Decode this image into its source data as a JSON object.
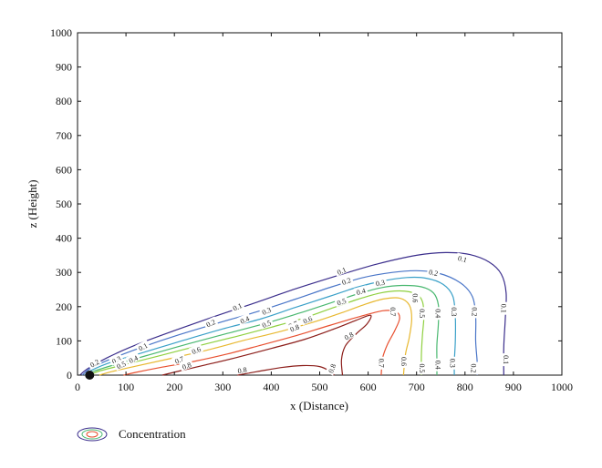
{
  "chart_data": {
    "type": "contour",
    "title": "",
    "xlabel": "x (Distance)",
    "ylabel": "z (Height)",
    "xlim": [
      0,
      1000
    ],
    "ylim": [
      0,
      1000
    ],
    "x_ticks": [
      0,
      100,
      200,
      300,
      400,
      500,
      600,
      700,
      800,
      900,
      1000
    ],
    "y_ticks": [
      0,
      100,
      200,
      300,
      400,
      500,
      600,
      700,
      800,
      900,
      1000
    ],
    "grid": false,
    "legend": {
      "position": "bottom-left",
      "label": "Concentration"
    },
    "source": {
      "x": 25,
      "z": 0
    },
    "levels": [
      {
        "value": 0.1,
        "label": "0.1",
        "color": "#3b2e8c",
        "points": [
          [
            5,
            0
          ],
          [
            20,
            18
          ],
          [
            60,
            50
          ],
          [
            120,
            88
          ],
          [
            200,
            130
          ],
          [
            280,
            170
          ],
          [
            360,
            208
          ],
          [
            450,
            252
          ],
          [
            540,
            292
          ],
          [
            620,
            325
          ],
          [
            700,
            350
          ],
          [
            760,
            358
          ],
          [
            810,
            352
          ],
          [
            850,
            330
          ],
          [
            875,
            295
          ],
          [
            885,
            240
          ],
          [
            883,
            160
          ],
          [
            880,
            80
          ],
          [
            880,
            0
          ]
        ]
      },
      {
        "value": 0.2,
        "label": "0.2",
        "color": "#4a76c8",
        "points": [
          [
            10,
            0
          ],
          [
            25,
            18
          ],
          [
            65,
            45
          ],
          [
            130,
            80
          ],
          [
            210,
            118
          ],
          [
            290,
            152
          ],
          [
            370,
            185
          ],
          [
            450,
            222
          ],
          [
            525,
            258
          ],
          [
            590,
            285
          ],
          [
            650,
            300
          ],
          [
            700,
            305
          ],
          [
            745,
            298
          ],
          [
            790,
            270
          ],
          [
            815,
            230
          ],
          [
            822,
            170
          ],
          [
            822,
            100
          ],
          [
            825,
            40
          ],
          [
            825,
            0
          ]
        ]
      },
      {
        "value": 0.3,
        "label": "0.3",
        "color": "#3aa0c8",
        "points": [
          [
            15,
            0
          ],
          [
            30,
            15
          ],
          [
            70,
            38
          ],
          [
            140,
            68
          ],
          [
            220,
            102
          ],
          [
            300,
            135
          ],
          [
            380,
            165
          ],
          [
            450,
            198
          ],
          [
            520,
            230
          ],
          [
            580,
            258
          ],
          [
            630,
            275
          ],
          [
            680,
            285
          ],
          [
            720,
            283
          ],
          [
            755,
            265
          ],
          [
            775,
            230
          ],
          [
            780,
            170
          ],
          [
            780,
            100
          ],
          [
            778,
            40
          ],
          [
            778,
            0
          ]
        ]
      },
      {
        "value": 0.4,
        "label": "0.4",
        "color": "#4ab870",
        "points": [
          [
            20,
            0
          ],
          [
            35,
            12
          ],
          [
            80,
            32
          ],
          [
            150,
            60
          ],
          [
            230,
            92
          ],
          [
            310,
            122
          ],
          [
            390,
            152
          ],
          [
            460,
            182
          ],
          [
            525,
            212
          ],
          [
            580,
            238
          ],
          [
            630,
            256
          ],
          [
            670,
            262
          ],
          [
            710,
            258
          ],
          [
            735,
            240
          ],
          [
            745,
            205
          ],
          [
            745,
            150
          ],
          [
            742,
            90
          ],
          [
            742,
            40
          ],
          [
            742,
            0
          ]
        ]
      },
      {
        "value": 0.5,
        "label": "0.5",
        "color": "#8fd040",
        "points": [
          [
            25,
            0
          ],
          [
            45,
            12
          ],
          [
            95,
            30
          ],
          [
            165,
            55
          ],
          [
            245,
            84
          ],
          [
            325,
            112
          ],
          [
            400,
            140
          ],
          [
            470,
            168
          ],
          [
            530,
            198
          ],
          [
            580,
            222
          ],
          [
            625,
            240
          ],
          [
            665,
            246
          ],
          [
            698,
            238
          ],
          [
            712,
            215
          ],
          [
            715,
            170
          ],
          [
            712,
            115
          ],
          [
            710,
            60
          ],
          [
            710,
            0
          ]
        ]
      },
      {
        "value": 0.6,
        "label": "0.6",
        "color": "#e8b830",
        "points": [
          [
            45,
            0
          ],
          [
            70,
            10
          ],
          [
            120,
            26
          ],
          [
            190,
            48
          ],
          [
            270,
            74
          ],
          [
            345,
            102
          ],
          [
            420,
            128
          ],
          [
            490,
            156
          ],
          [
            545,
            182
          ],
          [
            590,
            205
          ],
          [
            630,
            222
          ],
          [
            665,
            225
          ],
          [
            685,
            205
          ],
          [
            690,
            165
          ],
          [
            685,
            110
          ],
          [
            677,
            60
          ],
          [
            673,
            0
          ]
        ]
      },
      {
        "value": 0.7,
        "label": "0.7",
        "color": "#e85030",
        "points": [
          [
            95,
            0
          ],
          [
            120,
            8
          ],
          [
            170,
            22
          ],
          [
            240,
            40
          ],
          [
            310,
            62
          ],
          [
            380,
            88
          ],
          [
            450,
            115
          ],
          [
            520,
            145
          ],
          [
            580,
            170
          ],
          [
            630,
            188
          ],
          [
            658,
            185
          ],
          [
            665,
            165
          ],
          [
            655,
            130
          ],
          [
            640,
            90
          ],
          [
            630,
            50
          ],
          [
            627,
            0
          ]
        ]
      },
      {
        "value": 0.8,
        "label": "0.8",
        "color": "#8c1e1a",
        "points": [
          [
            175,
            0
          ],
          [
            210,
            12
          ],
          [
            265,
            30
          ],
          [
            330,
            52
          ],
          [
            400,
            78
          ],
          [
            470,
            105
          ],
          [
            530,
            135
          ],
          [
            575,
            160
          ],
          [
            605,
            175
          ],
          [
            598,
            150
          ],
          [
            575,
            120
          ],
          [
            553,
            85
          ],
          [
            545,
            45
          ],
          [
            547,
            0
          ]
        ]
      },
      {
        "value": 0.8,
        "label": "0.8",
        "color": "#8c1e1a",
        "points": [
          [
            330,
            0
          ],
          [
            370,
            10
          ],
          [
            420,
            22
          ],
          [
            465,
            28
          ],
          [
            500,
            25
          ],
          [
            520,
            12
          ],
          [
            530,
            0
          ]
        ]
      }
    ],
    "contour_labels": [
      {
        "text": "0.1",
        "x": 135,
        "z": 83,
        "angle": -28
      },
      {
        "text": "0.1",
        "x": 330,
        "z": 200,
        "angle": -25
      },
      {
        "text": "0.1",
        "x": 545,
        "z": 305,
        "angle": -22
      },
      {
        "text": "0.1",
        "x": 795,
        "z": 340,
        "angle": 15
      },
      {
        "text": "0.1",
        "x": 880,
        "z": 195,
        "angle": 90
      },
      {
        "text": "0.1",
        "x": 885,
        "z": 45,
        "angle": 90
      },
      {
        "text": "0.2",
        "x": 35,
        "z": 35,
        "angle": -30
      },
      {
        "text": "0.2",
        "x": 275,
        "z": 152,
        "angle": -24
      },
      {
        "text": "0.2",
        "x": 555,
        "z": 275,
        "angle": -20
      },
      {
        "text": "0.2",
        "x": 735,
        "z": 300,
        "angle": 12
      },
      {
        "text": "0.2",
        "x": 820,
        "z": 185,
        "angle": 90
      },
      {
        "text": "0.2",
        "x": 818,
        "z": 20,
        "angle": 90
      },
      {
        "text": "0.3",
        "x": 80,
        "z": 45,
        "angle": -26
      },
      {
        "text": "0.3",
        "x": 390,
        "z": 188,
        "angle": -22
      },
      {
        "text": "0.3",
        "x": 625,
        "z": 270,
        "angle": -10
      },
      {
        "text": "0.3",
        "x": 778,
        "z": 185,
        "angle": 90
      },
      {
        "text": "0.3",
        "x": 775,
        "z": 35,
        "angle": 90
      },
      {
        "text": "0.4",
        "x": 115,
        "z": 47,
        "angle": -25
      },
      {
        "text": "0.4",
        "x": 345,
        "z": 162,
        "angle": -24
      },
      {
        "text": "0.4",
        "x": 585,
        "z": 245,
        "angle": -15
      },
      {
        "text": "0.4",
        "x": 745,
        "z": 180,
        "angle": 90
      },
      {
        "text": "0.4",
        "x": 745,
        "z": 30,
        "angle": 90
      },
      {
        "text": "0.5",
        "x": 90,
        "z": 30,
        "angle": -25
      },
      {
        "text": "0.5",
        "x": 390,
        "z": 150,
        "angle": -22
      },
      {
        "text": "0.5",
        "x": 545,
        "z": 215,
        "angle": -18
      },
      {
        "text": "0.5",
        "x": 712,
        "z": 180,
        "angle": 90
      },
      {
        "text": "0.5",
        "x": 712,
        "z": 20,
        "angle": 90
      },
      {
        "text": "0.6",
        "x": 245,
        "z": 73,
        "angle": -22
      },
      {
        "text": "0.6",
        "x": 475,
        "z": 162,
        "angle": -22
      },
      {
        "text": "0.6",
        "x": 698,
        "z": 225,
        "angle": 90
      },
      {
        "text": "0.6",
        "x": 674,
        "z": 40,
        "angle": 90
      },
      {
        "text": "0.7",
        "x": 210,
        "z": 45,
        "angle": -22
      },
      {
        "text": "0.7",
        "x": 445,
        "z": 148,
        "angle": -22
      },
      {
        "text": "0.7",
        "x": 652,
        "z": 185,
        "angle": 90
      },
      {
        "text": "0.7",
        "x": 628,
        "z": 35,
        "angle": 90
      },
      {
        "text": "0.8",
        "x": 225,
        "z": 28,
        "angle": -20
      },
      {
        "text": "0.8",
        "x": 448,
        "z": 138,
        "angle": -22
      },
      {
        "text": "0.8",
        "x": 560,
        "z": 115,
        "angle": -30
      },
      {
        "text": "0.8",
        "x": 340,
        "z": 15,
        "angle": -10
      },
      {
        "text": "0.8",
        "x": 525,
        "z": 20,
        "angle": -70
      }
    ]
  },
  "colors": {
    "axis": "#111111",
    "source_marker": "#111111"
  }
}
